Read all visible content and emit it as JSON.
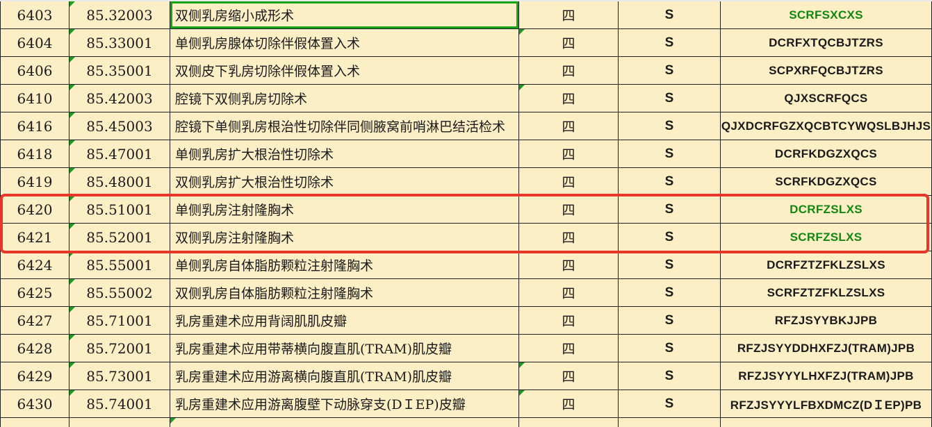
{
  "app": {
    "kind": "spreadsheet-table-fragment"
  },
  "colors": {
    "cell_background": "#FCEFC6",
    "grid_line": "#1E1E1E",
    "text": "#1A1A1A",
    "green_code_text": "#108810",
    "green_cell_border": "#17A317",
    "green_corner_marker": "#1E9A1E",
    "highlight_box_red": "#E8362B"
  },
  "highlight": {
    "shape": "red-box",
    "row_seqs": [
      "6420",
      "6421"
    ]
  },
  "icons": {
    "corner_marker": "error-corner-triangle"
  },
  "table": {
    "rows": [
      {
        "seq": "6403",
        "code": "85.32003",
        "desc": "双侧乳房缩小成形术",
        "level": "四",
        "flag": "S",
        "pinyin": "SCRFSXCXS",
        "pinyin_green": true,
        "desc_green_border": true,
        "corner_code": true,
        "corner_level": false
      },
      {
        "seq": "6404",
        "code": "85.33001",
        "desc": "单侧乳房腺体切除伴假体置入术",
        "level": "四",
        "flag": "S",
        "pinyin": "DCRFXTQCBJTZRS",
        "pinyin_green": false,
        "desc_green_border": false,
        "corner_code": true,
        "corner_level": true
      },
      {
        "seq": "6406",
        "code": "85.35001",
        "desc": "双侧皮下乳房切除伴假体置入术",
        "level": "四",
        "flag": "S",
        "pinyin": "SCPXRFQCBJTZRS",
        "pinyin_green": false,
        "desc_green_border": false,
        "corner_code": true,
        "corner_level": false
      },
      {
        "seq": "6410",
        "code": "85.42003",
        "desc": "腔镜下双侧乳房切除术",
        "level": "四",
        "flag": "S",
        "pinyin": "QJXSCRFQCS",
        "pinyin_green": false,
        "desc_green_border": false,
        "corner_code": true,
        "corner_level": true
      },
      {
        "seq": "6416",
        "code": "85.45003",
        "desc": "腔镜下单侧乳房根治性切除伴同侧腋窝前哨淋巴结活检术",
        "level": "四",
        "flag": "S",
        "pinyin": "QJXDCRFGZXQCBTCYWQSLBJHJS",
        "pinyin_green": false,
        "desc_green_border": false,
        "corner_code": true,
        "corner_level": false
      },
      {
        "seq": "6418",
        "code": "85.47001",
        "desc": "单侧乳房扩大根治性切除术",
        "level": "四",
        "flag": "S",
        "pinyin": "DCRFKDGZXQCS",
        "pinyin_green": false,
        "desc_green_border": false,
        "corner_code": true,
        "corner_level": false
      },
      {
        "seq": "6419",
        "code": "85.48001",
        "desc": "双侧乳房扩大根治性切除术",
        "level": "四",
        "flag": "S",
        "pinyin": "SCRFKDGZXQCS",
        "pinyin_green": false,
        "desc_green_border": false,
        "corner_code": true,
        "corner_level": false
      },
      {
        "seq": "6420",
        "code": "85.51001",
        "desc": "单侧乳房注射隆胸术",
        "level": "四",
        "flag": "S",
        "pinyin": "DCRFZSLXS",
        "pinyin_green": true,
        "desc_green_border": false,
        "corner_code": true,
        "corner_level": false
      },
      {
        "seq": "6421",
        "code": "85.52001",
        "desc": "双侧乳房注射隆胸术",
        "level": "四",
        "flag": "S",
        "pinyin": "SCRFZSLXS",
        "pinyin_green": true,
        "desc_green_border": false,
        "corner_code": true,
        "corner_level": false
      },
      {
        "seq": "6424",
        "code": "85.55001",
        "desc": "单侧乳房自体脂肪颗粒注射隆胸术",
        "level": "四",
        "flag": "S",
        "pinyin": "DCRFZTZFKLZSLXS",
        "pinyin_green": false,
        "desc_green_border": false,
        "corner_code": true,
        "corner_level": false
      },
      {
        "seq": "6425",
        "code": "85.55002",
        "desc": "双侧乳房自体脂肪颗粒注射隆胸术",
        "level": "四",
        "flag": "S",
        "pinyin": "SCRFZTZFKLZSLXS",
        "pinyin_green": false,
        "desc_green_border": false,
        "corner_code": true,
        "corner_level": false
      },
      {
        "seq": "6427",
        "code": "85.71001",
        "desc": "乳房重建术应用背阔肌肌皮瓣",
        "level": "四",
        "flag": "S",
        "pinyin": "RFZJSYYBKJJPB",
        "pinyin_green": false,
        "desc_green_border": false,
        "corner_code": true,
        "corner_level": false
      },
      {
        "seq": "6428",
        "code": "85.72001",
        "desc": "乳房重建术应用带蒂横向腹直肌(TRAM)肌皮瓣",
        "level": "四",
        "flag": "S",
        "pinyin": "RFZJSYYDDHXFZJ(TRAM)JPB",
        "pinyin_green": false,
        "desc_green_border": false,
        "corner_code": true,
        "corner_level": false
      },
      {
        "seq": "6429",
        "code": "85.73001",
        "desc": "乳房重建术应用游离横向腹直肌(TRAM)肌皮瓣",
        "level": "四",
        "flag": "S",
        "pinyin": "RFZJSYYYLHXFZJ(TRAM)JPB",
        "pinyin_green": false,
        "desc_green_border": false,
        "corner_code": true,
        "corner_level": true
      },
      {
        "seq": "6430",
        "code": "85.74001",
        "desc": "乳房重建术应用游离腹壁下动脉穿支(DＩEP)皮瓣",
        "level": "四",
        "flag": "S",
        "pinyin": "RFZJSYYYLFBXDMCZ(DＩEP)PB",
        "pinyin_green": false,
        "desc_green_border": false,
        "corner_code": true,
        "corner_level": true
      }
    ],
    "partial_bottom_row": {
      "visible": true,
      "corner_desc": true
    }
  }
}
